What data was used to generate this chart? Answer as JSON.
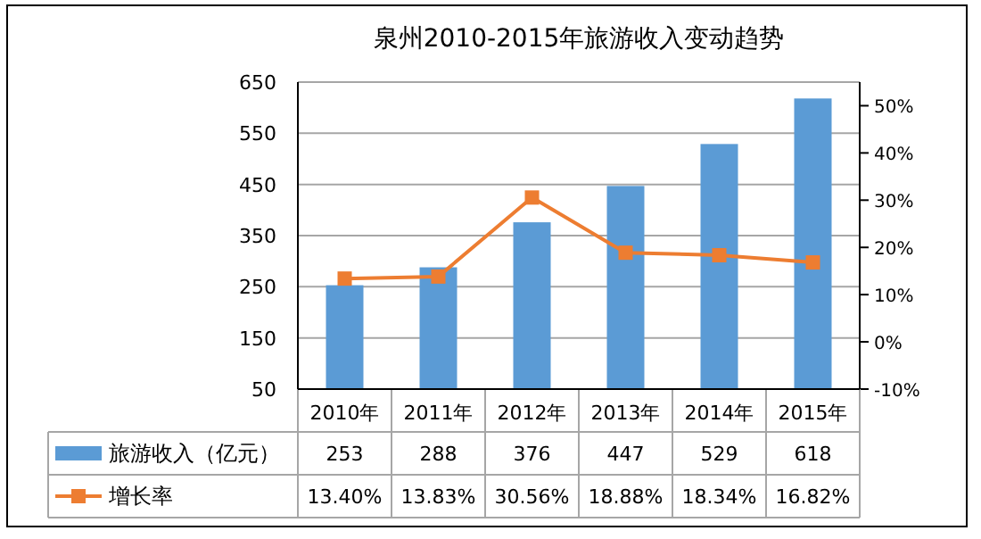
{
  "chart_data": {
    "type": "bar",
    "title": "泉州2010-2015年旅游收入变动趋势",
    "categories": [
      "2010年",
      "2011年",
      "2012年",
      "2013年",
      "2014年",
      "2015年"
    ],
    "series": [
      {
        "name": "旅游收入（亿元）",
        "color": "#5b9bd5",
        "values": [
          253,
          288,
          376,
          447,
          529,
          618
        ],
        "value_labels": [
          "253",
          "288",
          "376",
          "447",
          "529",
          "618"
        ]
      },
      {
        "name": "增长率",
        "type": "line",
        "axis": "y2",
        "color": "#ed7d31",
        "marker": "square",
        "values": [
          13.4,
          13.83,
          30.56,
          18.88,
          18.34,
          16.82
        ],
        "value_labels": [
          "13.40%",
          "13.83%",
          "30.56%",
          "18.88%",
          "18.34%",
          "16.82%"
        ]
      }
    ],
    "ylim": [
      50,
      650
    ],
    "yticks": [
      50,
      150,
      250,
      350,
      450,
      550,
      650
    ],
    "y2lim": [
      -10,
      55
    ],
    "y2ticks": [
      {
        "value": -10,
        "label": "-10%"
      },
      {
        "value": 0,
        "label": "0%"
      },
      {
        "value": 10,
        "label": "10%"
      },
      {
        "value": 20,
        "label": "20%"
      },
      {
        "value": 30,
        "label": "30%"
      },
      {
        "value": 40,
        "label": "40%"
      },
      {
        "value": 50,
        "label": "50%"
      }
    ],
    "grid": "y",
    "legend": "bottom"
  }
}
